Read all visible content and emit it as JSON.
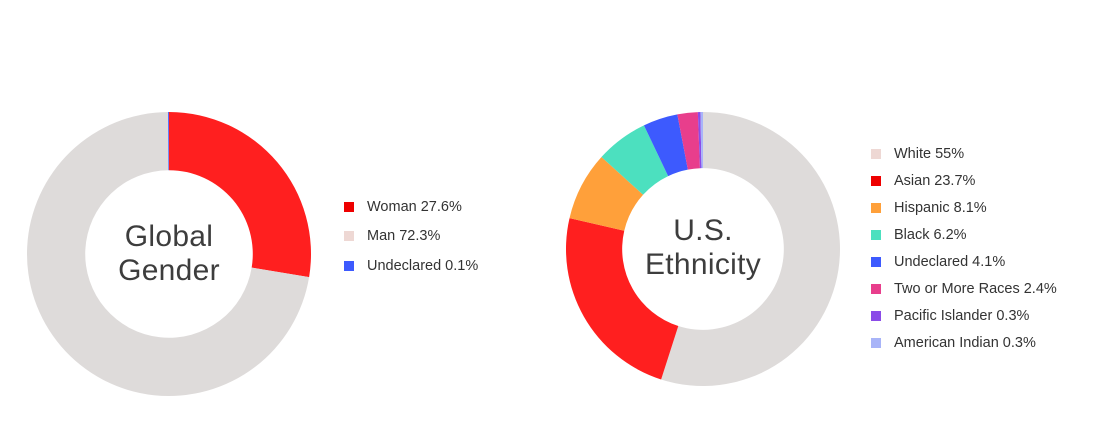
{
  "chart_data": [
    {
      "type": "pie",
      "title": "Global Gender",
      "title_lines": [
        "Global",
        "Gender"
      ],
      "legend_placement": "right",
      "slices": [
        {
          "label": "Woman 27.6%",
          "value": 27.6,
          "color": "#ff1f1f",
          "swatch": "#ee0000"
        },
        {
          "label": "Man 72.3%",
          "value": 72.3,
          "color": "#dedbda",
          "swatch": "#eed8d4"
        },
        {
          "label": "Undeclared 0.1%",
          "value": 0.1,
          "color": "#3d5afe",
          "swatch": "#3d5afe"
        }
      ]
    },
    {
      "type": "pie",
      "title": "U.S. Ethnicity",
      "title_lines": [
        "U.S.",
        "Ethnicity"
      ],
      "legend_placement": "right",
      "slices": [
        {
          "label": "White 55%",
          "value": 55,
          "color": "#dedbda",
          "swatch": "#eed8d4"
        },
        {
          "label": "Asian 23.7%",
          "value": 23.7,
          "color": "#ff1f1f",
          "swatch": "#ee0000"
        },
        {
          "label": "Hispanic 8.1%",
          "value": 8.1,
          "color": "#ffa03a",
          "swatch": "#ffa03a"
        },
        {
          "label": "Black 6.2%",
          "value": 6.2,
          "color": "#4ce0bf",
          "swatch": "#4ce0bf"
        },
        {
          "label": "Undeclared 4.1%",
          "value": 4.1,
          "color": "#3d5afe",
          "swatch": "#3d5afe"
        },
        {
          "label": "Two or More Races 2.4%",
          "value": 2.4,
          "color": "#e83e8c",
          "swatch": "#e83e8c"
        },
        {
          "label": "Pacific Islander 0.3%",
          "value": 0.3,
          "color": "#8b4be8",
          "swatch": "#8b4be8"
        },
        {
          "label": "American Indian 0.3%",
          "value": 0.3,
          "color": "#a8b4f8",
          "swatch": "#a8b4f8"
        }
      ]
    }
  ]
}
